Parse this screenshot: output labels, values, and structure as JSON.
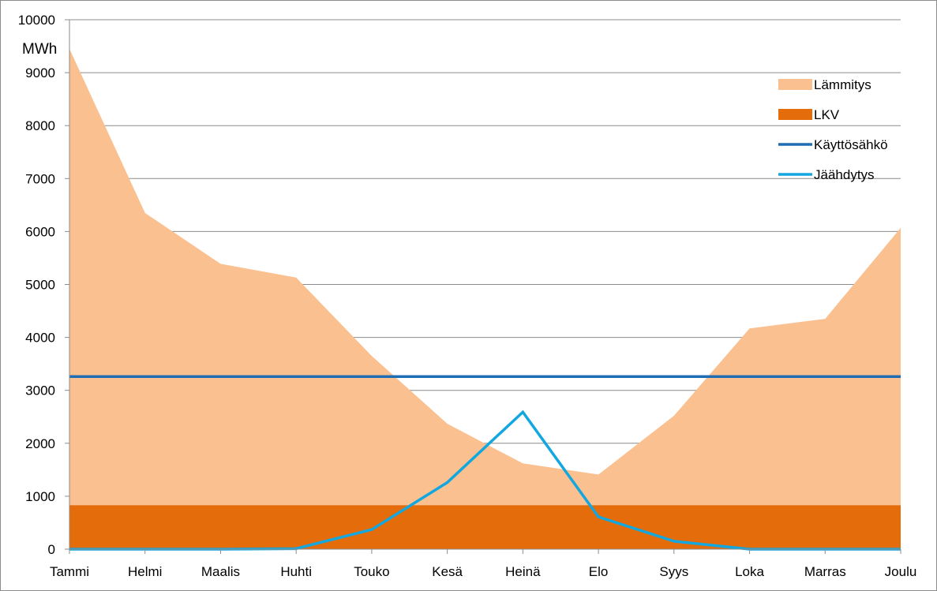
{
  "chart_data": {
    "type": "area",
    "title": "",
    "xlabel": "",
    "ylabel": "MWh",
    "ylim": [
      0,
      10000
    ],
    "yticks": [
      0,
      1000,
      2000,
      3000,
      4000,
      5000,
      6000,
      7000,
      8000,
      9000,
      10000
    ],
    "grid": true,
    "legend_position": "right",
    "categories": [
      "Tammi",
      "Helmi",
      "Maalis",
      "Huhti",
      "Touko",
      "Kesä",
      "Heinä",
      "Elo",
      "Syys",
      "Loka",
      "Marras",
      "Joulu"
    ],
    "series": [
      {
        "name": "Lämmitys",
        "kind": "stacked-area",
        "color": "#fac090",
        "values": [
          8620,
          5520,
          4560,
          4300,
          2820,
          1540,
          790,
          580,
          1690,
          3340,
          3520,
          5240
        ]
      },
      {
        "name": "LKV",
        "kind": "stacked-area",
        "color": "#e46c0a",
        "values": [
          830,
          830,
          830,
          830,
          830,
          830,
          830,
          830,
          830,
          830,
          830,
          830
        ]
      },
      {
        "name": "Käyttösähkö",
        "kind": "line",
        "color": "#1f6eb4",
        "values": [
          3260,
          3260,
          3260,
          3260,
          3260,
          3260,
          3260,
          3260,
          3260,
          3260,
          3260,
          3260
        ]
      },
      {
        "name": "Jäähdytys",
        "kind": "line",
        "color": "#13a7e0",
        "values": [
          0,
          0,
          0,
          10,
          370,
          1260,
          2590,
          610,
          150,
          0,
          0,
          0
        ]
      }
    ]
  }
}
